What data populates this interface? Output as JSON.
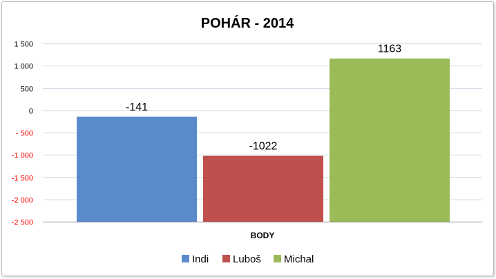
{
  "chart_data": {
    "type": "bar",
    "title": "POHÁR - 2014",
    "categories": [
      "BODY"
    ],
    "xlabel": "BODY",
    "ylabel": "",
    "ylim": [
      -2500,
      1500
    ],
    "yticks": [
      1500,
      1000,
      500,
      0,
      -500,
      -1000,
      -1500,
      -2000,
      -2500
    ],
    "ytick_labels": [
      "1 500",
      "1 000",
      "500",
      "0",
      "- 500",
      "-1 000",
      "-1 500",
      "-2 000",
      "-2 500"
    ],
    "grid": true,
    "legend_position": "bottom",
    "negative_tick_color": "#ff0000",
    "positive_tick_color": "#000000",
    "series": [
      {
        "name": "Indi",
        "values": [
          -141
        ],
        "label": "-141",
        "color": "#5b8acb"
      },
      {
        "name": "Luboš",
        "values": [
          -1022
        ],
        "label": "-1022",
        "color": "#c0504d"
      },
      {
        "name": "Michal",
        "values": [
          1163
        ],
        "label": "1163",
        "color": "#9bbb59"
      }
    ]
  }
}
